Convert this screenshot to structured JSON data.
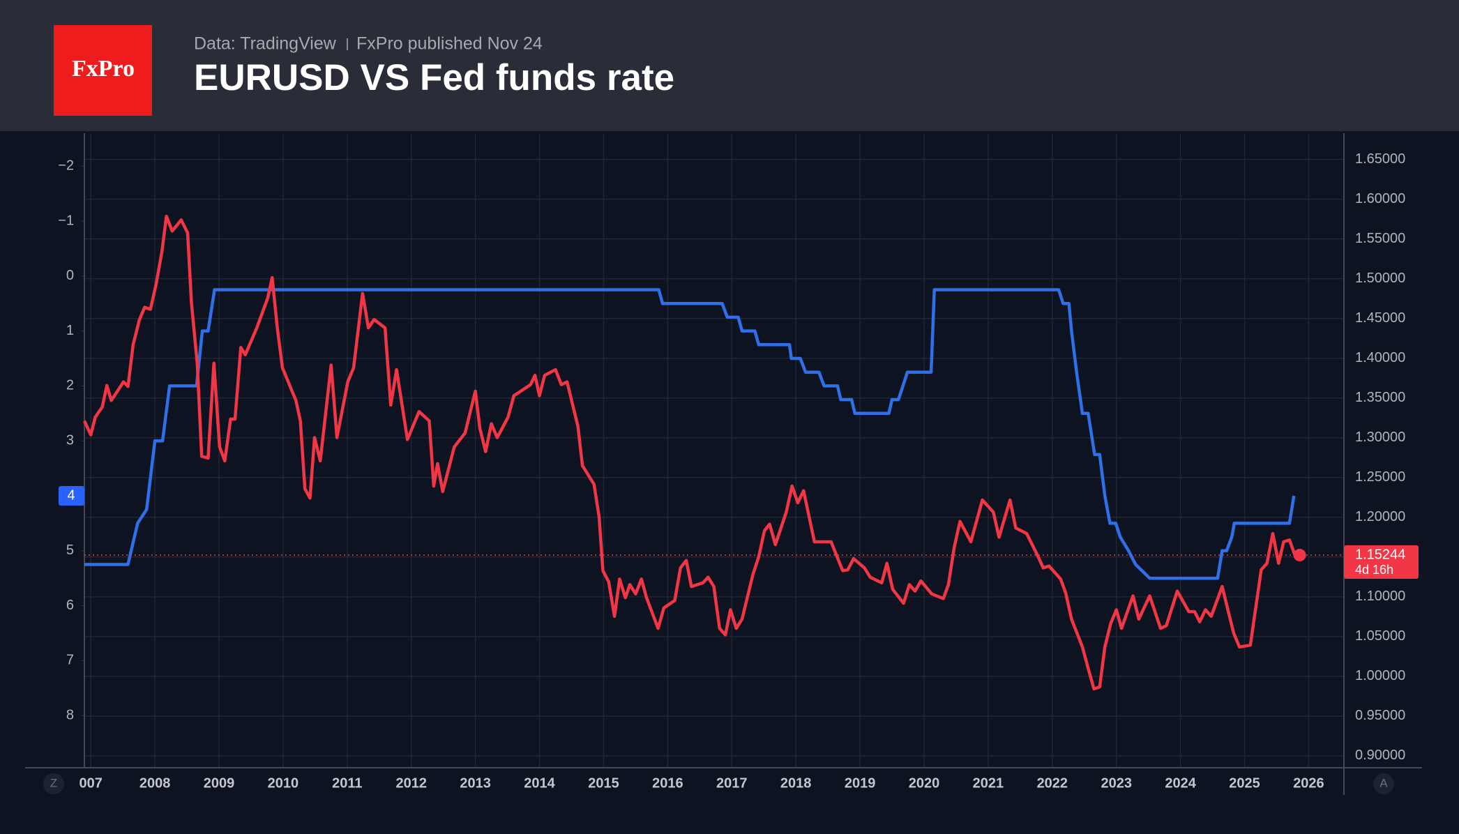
{
  "chart_data": {
    "type": "line",
    "logo": "FxPro",
    "source": "Data: TradingView",
    "published": "FxPro published Nov 24",
    "title": "EURUSD VS Fed funds rate",
    "xlim": [
      2006.9,
      2026.55
    ],
    "xticks": [
      {
        "value": 2007,
        "label": "007"
      },
      2008,
      2009,
      2010,
      2011,
      2012,
      2013,
      2014,
      2015,
      2016,
      2017,
      2018,
      2019,
      2020,
      2021,
      2022,
      2023,
      2024,
      2025,
      2026
    ],
    "ylim": [
      -2.6,
      8.95
    ],
    "y_inverted": true,
    "yticks": [
      {
        "value": -2,
        "label": "−2"
      },
      {
        "value": -1,
        "label": "−1"
      },
      0,
      1,
      2,
      3,
      4,
      5,
      6,
      7,
      8
    ],
    "y2lim": [
      0.885,
      1.683
    ],
    "y2ticks": [
      {
        "value": 0.9,
        "label": "0.90000"
      },
      {
        "value": 0.95,
        "label": "0.95000"
      },
      {
        "value": 1.0,
        "label": "1.00000"
      },
      {
        "value": 1.05,
        "label": "1.05000"
      },
      {
        "value": 1.1,
        "label": "1.10000"
      },
      {
        "value": 1.15,
        "label": "1.15000"
      },
      {
        "value": 1.2,
        "label": "1.20000"
      },
      {
        "value": 1.25,
        "label": "1.25000"
      },
      {
        "value": 1.3,
        "label": "1.30000"
      },
      {
        "value": 1.35,
        "label": "1.35000"
      },
      {
        "value": 1.4,
        "label": "1.40000"
      },
      {
        "value": 1.45,
        "label": "1.45000"
      },
      {
        "value": 1.5,
        "label": "1.50000"
      },
      {
        "value": 1.55,
        "label": "1.55000"
      },
      {
        "value": 1.6,
        "label": "1.60000"
      },
      {
        "value": 1.65,
        "label": "1.65000"
      }
    ],
    "grid": true,
    "series": [
      {
        "color": "#2f6fe8",
        "axis": "y",
        "x": [
          2006.9,
          2007.58,
          2007.73,
          2007.87,
          2008.0,
          2008.12,
          2008.23,
          2008.65,
          2008.74,
          2008.83,
          2008.93,
          2015.86,
          2015.92,
          2016.85,
          2016.93,
          2017.1,
          2017.16,
          2017.36,
          2017.42,
          2017.9,
          2017.93,
          2018.07,
          2018.15,
          2018.36,
          2018.44,
          2018.65,
          2018.7,
          2018.87,
          2018.92,
          2019.45,
          2019.5,
          2019.6,
          2019.67,
          2019.74,
          2020.11,
          2020.16,
          2022.1,
          2022.17,
          2022.26,
          2022.3,
          2022.38,
          2022.47,
          2022.56,
          2022.66,
          2022.74,
          2022.82,
          2022.9,
          2022.99,
          2023.06,
          2023.19,
          2023.3,
          2023.52,
          2024.58,
          2024.65,
          2024.72,
          2024.8,
          2024.84,
          2025.7,
          2025.77
        ],
        "values": [
          5.25,
          5.25,
          4.5,
          4.25,
          3.0,
          3.0,
          2.0,
          2.0,
          1.0,
          1.0,
          0.25,
          0.25,
          0.5,
          0.5,
          0.75,
          0.75,
          1.0,
          1.0,
          1.25,
          1.25,
          1.5,
          1.5,
          1.75,
          1.75,
          2.0,
          2.0,
          2.25,
          2.25,
          2.5,
          2.5,
          2.25,
          2.25,
          2.0,
          1.75,
          1.75,
          0.25,
          0.25,
          0.5,
          0.5,
          1.0,
          1.75,
          2.5,
          2.5,
          3.25,
          3.25,
          4.0,
          4.5,
          4.5,
          4.75,
          5.0,
          5.25,
          5.5,
          5.5,
          5.0,
          5.0,
          4.75,
          4.5,
          4.5,
          4.0
        ]
      },
      {
        "color": "#f23645",
        "axis": "y2",
        "x": [
          2006.9,
          2007.0,
          2007.07,
          2007.18,
          2007.25,
          2007.32,
          2007.51,
          2007.58,
          2007.66,
          2007.76,
          2007.84,
          2007.93,
          2008.02,
          2008.11,
          2008.18,
          2008.27,
          2008.41,
          2008.51,
          2008.57,
          2008.66,
          2008.73,
          2008.83,
          2008.92,
          2009.01,
          2009.09,
          2009.18,
          2009.25,
          2009.34,
          2009.41,
          2009.59,
          2009.76,
          2009.83,
          2009.91,
          2009.99,
          2010.2,
          2010.27,
          2010.34,
          2010.42,
          2010.49,
          2010.58,
          2010.75,
          2010.84,
          2011.01,
          2011.1,
          2011.24,
          2011.33,
          2011.42,
          2011.59,
          2011.68,
          2011.77,
          2011.94,
          2012.12,
          2012.28,
          2012.35,
          2012.41,
          2012.49,
          2012.67,
          2012.84,
          2013.0,
          2013.07,
          2013.16,
          2013.25,
          2013.34,
          2013.51,
          2013.6,
          2013.86,
          2013.93,
          2014.0,
          2014.08,
          2014.25,
          2014.34,
          2014.43,
          2014.6,
          2014.67,
          2014.85,
          2014.93,
          2014.99,
          2015.08,
          2015.17,
          2015.25,
          2015.34,
          2015.41,
          2015.5,
          2015.59,
          2015.67,
          2015.85,
          2015.94,
          2016.11,
          2016.2,
          2016.29,
          2016.37,
          2016.55,
          2016.63,
          2016.72,
          2016.81,
          2016.9,
          2016.98,
          2017.07,
          2017.16,
          2017.33,
          2017.42,
          2017.51,
          2017.59,
          2017.68,
          2017.85,
          2017.94,
          2018.03,
          2018.12,
          2018.29,
          2018.55,
          2018.73,
          2018.81,
          2018.9,
          2019.07,
          2019.16,
          2019.34,
          2019.42,
          2019.51,
          2019.68,
          2019.77,
          2019.86,
          2019.95,
          2020.12,
          2020.3,
          2020.38,
          2020.47,
          2020.56,
          2020.73,
          2020.91,
          2021.08,
          2021.17,
          2021.34,
          2021.43,
          2021.6,
          2021.78,
          2021.86,
          2021.95,
          2022.13,
          2022.21,
          2022.3,
          2022.47,
          2022.56,
          2022.65,
          2022.74,
          2022.82,
          2022.91,
          2023.0,
          2023.08,
          2023.26,
          2023.35,
          2023.52,
          2023.69,
          2023.78,
          2023.95,
          2024.13,
          2024.22,
          2024.3,
          2024.39,
          2024.48,
          2024.65,
          2024.74,
          2024.83,
          2024.92,
          2025.09,
          2025.18,
          2025.26,
          2025.35,
          2025.44,
          2025.53,
          2025.61,
          2025.7,
          2025.79,
          2025.86
        ],
        "values": [
          1.3212,
          1.3036,
          1.3259,
          1.3388,
          1.3657,
          1.3469,
          1.3703,
          1.3645,
          1.4171,
          1.4487,
          1.464,
          1.4616,
          1.4932,
          1.5342,
          1.5786,
          1.5599,
          1.5739,
          1.5576,
          1.4698,
          1.3937,
          1.2767,
          1.2744,
          1.3937,
          1.2884,
          1.2709,
          1.3235,
          1.3235,
          1.4136,
          1.4043,
          1.4382,
          1.4757,
          1.5014,
          1.4382,
          1.3879,
          1.3469,
          1.3212,
          1.2358,
          1.2241,
          1.3001,
          1.2709,
          1.3914,
          1.3001,
          1.3703,
          1.3879,
          1.4815,
          1.4382,
          1.4487,
          1.4382,
          1.3411,
          1.3856,
          1.2978,
          1.3329,
          1.3212,
          1.2393,
          1.2674,
          1.2323,
          1.2884,
          1.306,
          1.3586,
          1.3118,
          1.2826,
          1.3177,
          1.3001,
          1.3259,
          1.3528,
          1.3668,
          1.3785,
          1.3528,
          1.3785,
          1.3856,
          1.3668,
          1.3703,
          1.3142,
          1.265,
          1.2416,
          1.2007,
          1.1328,
          1.1188,
          1.0755,
          1.1223,
          1.0989,
          1.1153,
          1.1036,
          1.1223,
          1.0989,
          1.0603,
          1.086,
          1.0954,
          1.1363,
          1.1457,
          1.1129,
          1.1176,
          1.1246,
          1.1129,
          1.0603,
          1.0521,
          1.0837,
          1.0603,
          1.072,
          1.1281,
          1.1504,
          1.1831,
          1.1913,
          1.1656,
          1.2065,
          1.2393,
          1.2182,
          1.2334,
          1.1691,
          1.1691,
          1.1328,
          1.134,
          1.148,
          1.1363,
          1.1246,
          1.1176,
          1.1422,
          1.1094,
          1.0919,
          1.1153,
          1.1071,
          1.1199,
          1.1036,
          1.0977,
          1.1153,
          1.1621,
          1.1948,
          1.1691,
          1.2217,
          1.2065,
          1.1749,
          1.2217,
          1.1866,
          1.1796,
          1.1504,
          1.1363,
          1.1387,
          1.1223,
          1.1047,
          1.072,
          1.0369,
          1.01,
          0.9842,
          0.9866,
          1.0369,
          1.0661,
          1.0837,
          1.0603,
          1.1012,
          1.072,
          1.1012,
          1.0603,
          1.0638,
          1.1071,
          1.0813,
          1.0813,
          1.0685,
          1.0837,
          1.0755,
          1.1129,
          1.0837,
          1.0544,
          1.0369,
          1.0392,
          1.0895,
          1.134,
          1.1422,
          1.1796,
          1.1422,
          1.1691,
          1.1714,
          1.1515,
          1.15244
        ]
      }
    ],
    "rate_badge": {
      "value": 4,
      "label": "4"
    },
    "price_label": "1.15244",
    "countdown": "4d 16h",
    "controls": [
      "Z",
      "A"
    ]
  }
}
